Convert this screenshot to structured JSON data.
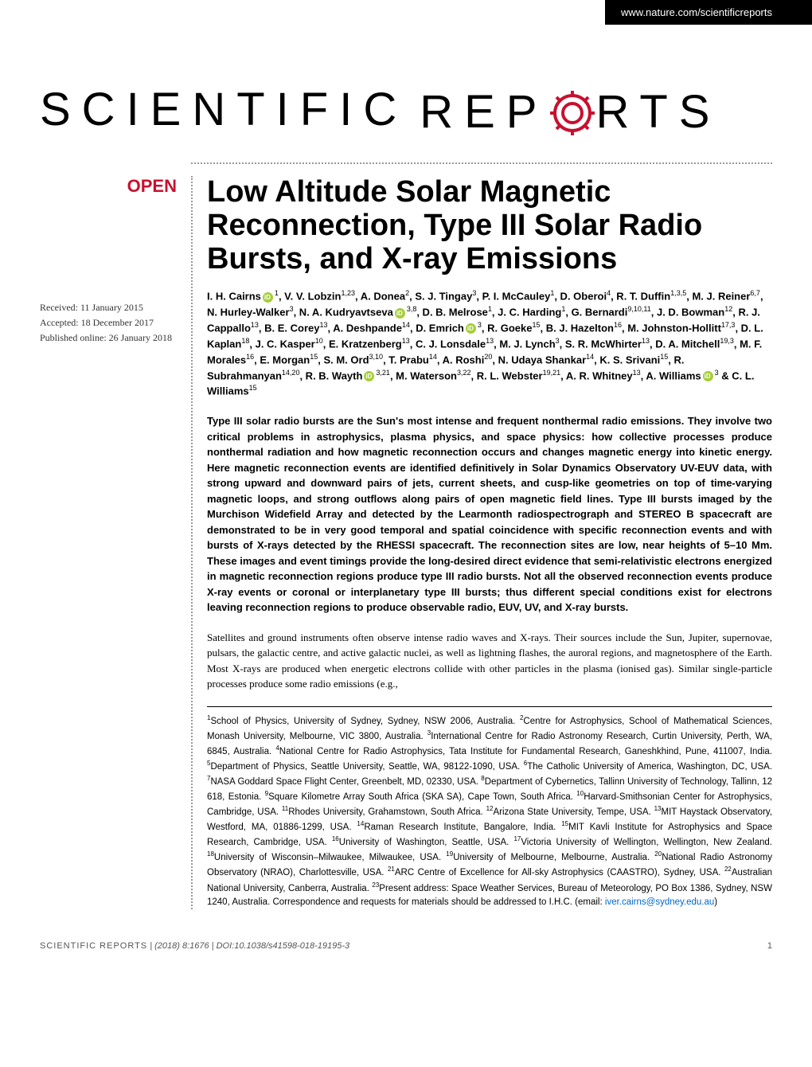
{
  "header": {
    "url": "www.nature.com/scientificreports"
  },
  "logo": {
    "part1": "SCIENTIFIC",
    "part2": "REP",
    "part3": "RTS",
    "gear_color": "#c8102e"
  },
  "open_badge": "OPEN",
  "dates": {
    "received": "Received: 11 January 2015",
    "accepted": "Accepted: 18 December 2017",
    "published": "Published online: 26 January 2018"
  },
  "title": "Low Altitude Solar Magnetic Reconnection, Type III Solar Radio Bursts, and X-ray Emissions",
  "authors_html": "I. H. Cairns<orcid></orcid><sup>1</sup>, V. V. Lobzin<sup>1,23</sup>, A. Donea<sup>2</sup>, S. J. Tingay<sup>3</sup>, P. I. McCauley<sup>1</sup>, D. Oberoi<sup>4</sup>, R. T. Duffin<sup>1,3,5</sup>, M. J. Reiner<sup>6,7</sup>, N. Hurley-Walker<sup>3</sup>, N. A. Kudryavtseva<orcid></orcid><sup>3,8</sup>, D. B. Melrose<sup>1</sup>, J. C. Harding<sup>1</sup>, G. Bernardi<sup>9,10,11</sup>, J. D. Bowman<sup>12</sup>, R. J. Cappallo<sup>13</sup>, B. E. Corey<sup>13</sup>, A. Deshpande<sup>14</sup>, D. Emrich<orcid></orcid><sup>3</sup>, R. Goeke<sup>15</sup>, B. J. Hazelton<sup>16</sup>, M. Johnston-Hollitt<sup>17,3</sup>, D. L. Kaplan<sup>18</sup>, J. C. Kasper<sup>10</sup>, E. Kratzenberg<sup>13</sup>, C. J. Lonsdale<sup>13</sup>, M. J. Lynch<sup>3</sup>, S. R. McWhirter<sup>13</sup>, D. A. Mitchell<sup>19,3</sup>, M. F. Morales<sup>16</sup>, E. Morgan<sup>15</sup>, S. M. Ord<sup>3,10</sup>, T. Prabu<sup>14</sup>, A. Roshi<sup>20</sup>, N. Udaya Shankar<sup>14</sup>, K. S. Srivani<sup>15</sup>, R. Subrahmanyan<sup>14,20</sup>, R. B. Wayth<orcid></orcid><sup>3,21</sup>, M. Waterson<sup>3,22</sup>, R. L. Webster<sup>19,21</sup>, A. R. Whitney<sup>13</sup>, A. Williams<orcid></orcid><sup>3</sup> & C. L. Williams<sup>15</sup>",
  "abstract": "Type III solar radio bursts are the Sun's most intense and frequent nonthermal radio emissions. They involve two critical problems in astrophysics, plasma physics, and space physics: how collective processes produce nonthermal radiation and how magnetic reconnection occurs and changes magnetic energy into kinetic energy. Here magnetic reconnection events are identified definitively in Solar Dynamics Observatory UV-EUV data, with strong upward and downward pairs of jets, current sheets, and cusp-like geometries on top of time-varying magnetic loops, and strong outflows along pairs of open magnetic field lines. Type III bursts imaged by the Murchison Widefield Array and detected by the Learmonth radiospectrograph and STEREO B spacecraft are demonstrated to be in very good temporal and spatial coincidence with specific reconnection events and with bursts of X-rays detected by the RHESSI spacecraft. The reconnection sites are low, near heights of 5–10 Mm. These images and event timings provide the long-desired direct evidence that semi-relativistic electrons energized in magnetic reconnection regions produce type III radio bursts. Not all the observed reconnection events produce X-ray events or coronal or interplanetary type III bursts; thus different special conditions exist for electrons leaving reconnection regions to produce observable radio, EUV, UV, and X-ray bursts.",
  "intro": "Satellites and ground instruments often observe intense radio waves and X-rays. Their sources include the Sun, Jupiter, supernovae, pulsars, the galactic centre, and active galactic nuclei, as well as lightning flashes, the auroral regions, and magnetosphere of the Earth. Most X-rays are produced when energetic electrons collide with other particles in the plasma (ionised gas). Similar single-particle processes produce some radio emissions (e.g.,",
  "affiliations": "<sup>1</sup>School of Physics, University of Sydney, Sydney, NSW 2006, Australia. <sup>2</sup>Centre for Astrophysics, School of Mathematical Sciences, Monash University, Melbourne, VIC 3800, Australia. <sup>3</sup>International Centre for Radio Astronomy Research, Curtin University, Perth, WA, 6845, Australia. <sup>4</sup>National Centre for Radio Astrophysics, Tata Institute for Fundamental Research, Ganeshkhind, Pune, 411007, India. <sup>5</sup>Department of Physics, Seattle University, Seattle, WA, 98122-1090, USA. <sup>6</sup>The Catholic University of America, Washington, DC, USA. <sup>7</sup>NASA Goddard Space Flight Center, Greenbelt, MD, 02330, USA. <sup>8</sup>Department of Cybernetics, Tallinn University of Technology, Tallinn, 12 618, Estonia. <sup>9</sup>Square Kilometre Array South Africa (SKA SA), Cape Town, South Africa. <sup>10</sup>Harvard-Smithsonian Center for Astrophysics, Cambridge, USA. <sup>11</sup>Rhodes University, Grahamstown, South Africa. <sup>12</sup>Arizona State University, Tempe, USA. <sup>13</sup>MIT Haystack Observatory, Westford, MA, 01886-1299, USA. <sup>14</sup>Raman Research Institute, Bangalore, India. <sup>15</sup>MIT Kavli Institute for Astrophysics and Space Research, Cambridge, USA. <sup>16</sup>University of Washington, Seattle, USA. <sup>17</sup>Victoria University of Wellington, Wellington, New Zealand. <sup>18</sup>University of Wisconsin–Milwaukee, Milwaukee, USA. <sup>19</sup>University of Melbourne, Melbourne, Australia. <sup>20</sup>National Radio Astronomy Observatory (NRAO), Charlottesville, USA. <sup>21</sup>ARC Centre of Excellence for All-sky Astrophysics (CAASTRO), Sydney, USA. <sup>22</sup>Australian National University, Canberra, Australia. <sup>23</sup>Present address: Space Weather Services, Bureau of Meteorology, PO Box 1386, Sydney, NSW 1240, Australia. Correspondence and requests for materials should be addressed to I.H.C. (email: <span class=\"email-link\">iver.cairns@sydney.edu.au</span>)",
  "footer": {
    "journal": "SCIENTIFIC REPORTS",
    "citation": " | (2018) 8:1676 | DOI:10.1038/s41598-018-19195-3",
    "page": "1"
  },
  "colors": {
    "brand_red": "#c8102e",
    "orcid_green": "#a6ce39",
    "link_blue": "#0066cc",
    "header_bg": "#000000",
    "text": "#000000"
  },
  "typography": {
    "title_fontsize": 38,
    "logo_fontsize": 58,
    "logo_letterspacing": 14,
    "body_fontsize": 13,
    "affil_fontsize": 11.5,
    "footer_fontsize": 11
  }
}
